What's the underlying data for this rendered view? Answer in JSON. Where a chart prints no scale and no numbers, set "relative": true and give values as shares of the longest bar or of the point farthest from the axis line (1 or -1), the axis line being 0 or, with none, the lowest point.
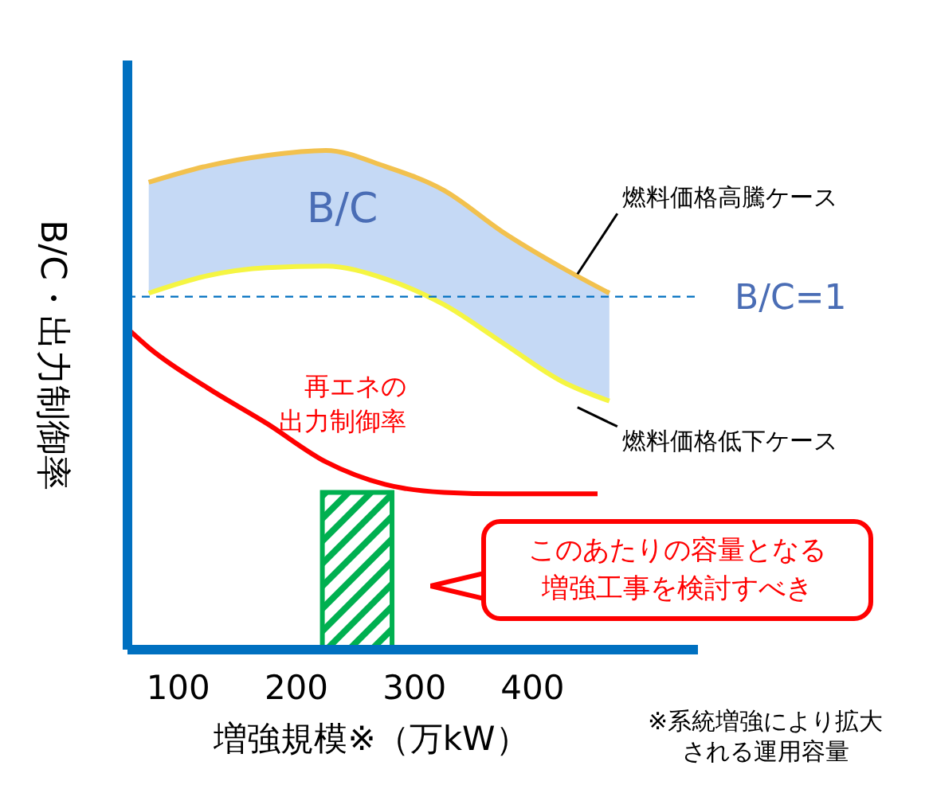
{
  "chart_data": {
    "type": "line",
    "relative": true,
    "xlabel": "増強規模※（万kW）",
    "ylabel": "B/C・出力制御率",
    "xlim": [
      57,
      540
    ],
    "xticks": [
      100,
      200,
      300,
      400
    ],
    "x": [
      75,
      125,
      175,
      225,
      275,
      325,
      375,
      425,
      465
    ],
    "grid": false,
    "legend": false,
    "marker": "none",
    "series": [
      {
        "name": "燃料価格高騰ケース",
        "color": "#f2c14e",
        "values": [
          0.936,
          0.969,
          0.99,
          1.0,
          0.968,
          0.92,
          0.836,
          0.765,
          0.714
        ]
      },
      {
        "name": "燃料価格低下ケース",
        "color": "#f5f542",
        "values": [
          0.714,
          0.749,
          0.765,
          0.768,
          0.743,
          0.691,
          0.614,
          0.537,
          0.498
        ],
        "lower": [
          0.714,
          0.749,
          0.765,
          0.768,
          0.743,
          0.691,
          0.614,
          0.537,
          0.498
        ],
        "upper": [
          0.936,
          0.969,
          0.99,
          1.0,
          0.968,
          0.92,
          0.836,
          0.765,
          0.714
        ]
      },
      {
        "name": "再エネの出力制御率",
        "color": "#ff0000",
        "x": [
          57,
          75,
          125,
          175,
          225,
          275,
          325,
          375,
          425,
          455
        ],
        "values": [
          0.643,
          0.605,
          0.524,
          0.453,
          0.376,
          0.331,
          0.315,
          0.312,
          0.312,
          0.312
        ]
      }
    ],
    "ref_lines": [
      {
        "axis": "y",
        "value": 0.707,
        "label": "B/C=1",
        "color": "#0070c0",
        "line_style": "dashed"
      }
    ],
    "bands": [
      {
        "axis": "x",
        "from": 222,
        "to": 281,
        "color": "#00b050"
      }
    ],
    "annotations": [
      "B/C",
      "このあたりの容量となる増強工事を検討すべき",
      "※系統増強により拡大される運用容量"
    ]
  }
}
